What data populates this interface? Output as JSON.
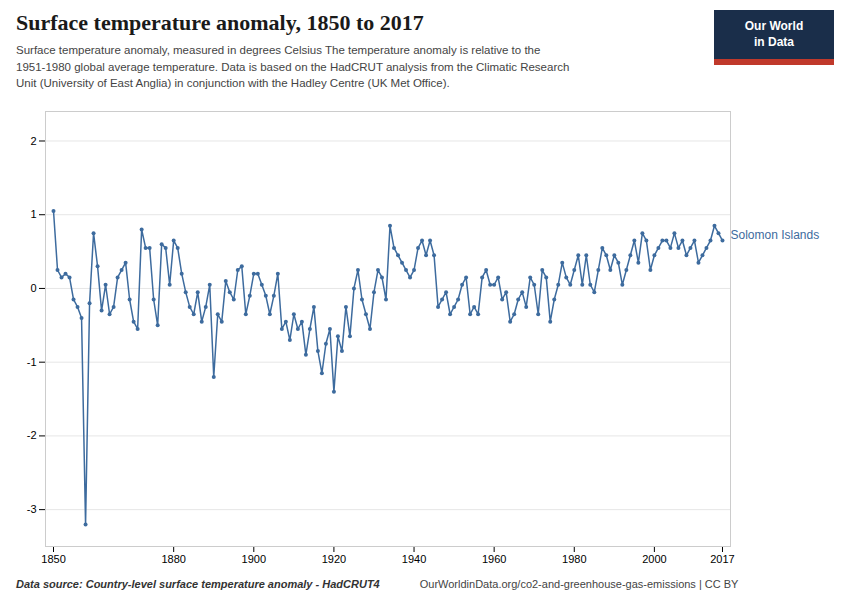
{
  "chart_data": {
    "type": "line",
    "title": "Surface temperature anomaly, 1850 to 2017",
    "subtitle": "Surface temperature anomaly, measured in degrees Celsius The temperature anomaly is relative to the\n1951-1980 global average temperature. Data is based on the HadCRUT analysis from the Climatic Research\nUnit (University of East Anglia) in conjunction with the Hadley Centre (UK Met Office).",
    "caption": "Data source: Country-level surface temperature anomaly - HadCRUT4",
    "credit": "OurWorldinData.org/co2-and-greenhouse-gas-emissions | CC BY",
    "logo": "Our World\nin Data",
    "color": "#3d6b9e",
    "marker": "circle",
    "grid": true,
    "xlim": [
      1848,
      2019
    ],
    "ylim": [
      -3.5,
      2.4
    ],
    "xticks": [
      1850,
      1880,
      1900,
      1920,
      1940,
      1960,
      1980,
      2000,
      2017
    ],
    "yticks": [
      -3,
      -2,
      -1,
      0,
      1,
      2
    ],
    "annotations": [
      {
        "text": "Solomon Islands",
        "x": 2017,
        "y": 0.65
      }
    ],
    "x": [
      1850,
      1851,
      1852,
      1853,
      1854,
      1855,
      1856,
      1857,
      1858,
      1859,
      1860,
      1861,
      1862,
      1863,
      1864,
      1865,
      1866,
      1867,
      1868,
      1869,
      1870,
      1871,
      1872,
      1873,
      1874,
      1875,
      1876,
      1877,
      1878,
      1879,
      1880,
      1881,
      1882,
      1883,
      1884,
      1885,
      1886,
      1887,
      1888,
      1889,
      1890,
      1891,
      1892,
      1893,
      1894,
      1895,
      1896,
      1897,
      1898,
      1899,
      1900,
      1901,
      1902,
      1903,
      1904,
      1905,
      1906,
      1907,
      1908,
      1909,
      1910,
      1911,
      1912,
      1913,
      1914,
      1915,
      1916,
      1917,
      1918,
      1919,
      1920,
      1921,
      1922,
      1923,
      1924,
      1925,
      1926,
      1927,
      1928,
      1929,
      1930,
      1931,
      1932,
      1933,
      1934,
      1935,
      1936,
      1937,
      1938,
      1939,
      1940,
      1941,
      1942,
      1943,
      1944,
      1945,
      1946,
      1947,
      1948,
      1949,
      1950,
      1951,
      1952,
      1953,
      1954,
      1955,
      1956,
      1957,
      1958,
      1959,
      1960,
      1961,
      1962,
      1963,
      1964,
      1965,
      1966,
      1967,
      1968,
      1969,
      1970,
      1971,
      1972,
      1973,
      1974,
      1975,
      1976,
      1977,
      1978,
      1979,
      1980,
      1981,
      1982,
      1983,
      1984,
      1985,
      1986,
      1987,
      1988,
      1989,
      1990,
      1991,
      1992,
      1993,
      1994,
      1995,
      1996,
      1997,
      1998,
      1999,
      2000,
      2001,
      2002,
      2003,
      2004,
      2005,
      2006,
      2007,
      2008,
      2009,
      2010,
      2011,
      2012,
      2013,
      2014,
      2015,
      2016,
      2017
    ],
    "values": [
      1.05,
      0.25,
      0.15,
      0.2,
      0.15,
      -0.15,
      -0.25,
      -0.4,
      -3.2,
      -0.2,
      0.75,
      0.3,
      -0.3,
      0.05,
      -0.35,
      -0.25,
      0.15,
      0.25,
      0.35,
      -0.15,
      -0.45,
      -0.55,
      0.8,
      0.55,
      0.55,
      -0.15,
      -0.5,
      0.6,
      0.55,
      0.05,
      0.65,
      0.55,
      0.2,
      -0.05,
      -0.25,
      -0.35,
      -0.05,
      -0.45,
      -0.25,
      0.05,
      -1.2,
      -0.35,
      -0.45,
      0.1,
      -0.05,
      -0.15,
      0.25,
      0.3,
      -0.35,
      -0.1,
      0.2,
      0.2,
      0.05,
      -0.1,
      -0.35,
      -0.1,
      0.2,
      -0.55,
      -0.45,
      -0.7,
      -0.35,
      -0.55,
      -0.45,
      -0.9,
      -0.55,
      -0.25,
      -0.85,
      -1.15,
      -0.75,
      -0.55,
      -1.4,
      -0.65,
      -0.85,
      -0.25,
      -0.65,
      0.0,
      0.25,
      -0.15,
      -0.35,
      -0.55,
      -0.05,
      0.25,
      0.15,
      -0.15,
      0.85,
      0.55,
      0.45,
      0.35,
      0.25,
      0.15,
      0.25,
      0.55,
      0.65,
      0.45,
      0.65,
      0.45,
      -0.25,
      -0.15,
      -0.05,
      -0.35,
      -0.25,
      -0.15,
      0.05,
      0.15,
      -0.35,
      -0.25,
      -0.35,
      0.15,
      0.25,
      0.05,
      0.05,
      0.15,
      -0.15,
      -0.05,
      -0.45,
      -0.35,
      -0.15,
      -0.05,
      -0.25,
      0.15,
      0.05,
      -0.35,
      0.25,
      0.15,
      -0.45,
      -0.15,
      0.05,
      0.35,
      0.15,
      0.05,
      0.25,
      0.45,
      0.05,
      0.45,
      0.05,
      -0.05,
      0.25,
      0.55,
      0.45,
      0.25,
      0.45,
      0.35,
      0.05,
      0.25,
      0.45,
      0.65,
      0.35,
      0.75,
      0.65,
      0.25,
      0.45,
      0.55,
      0.65,
      0.65,
      0.55,
      0.75,
      0.55,
      0.65,
      0.45,
      0.55,
      0.65,
      0.35,
      0.45,
      0.55,
      0.65,
      0.85,
      0.75,
      0.65
    ]
  }
}
